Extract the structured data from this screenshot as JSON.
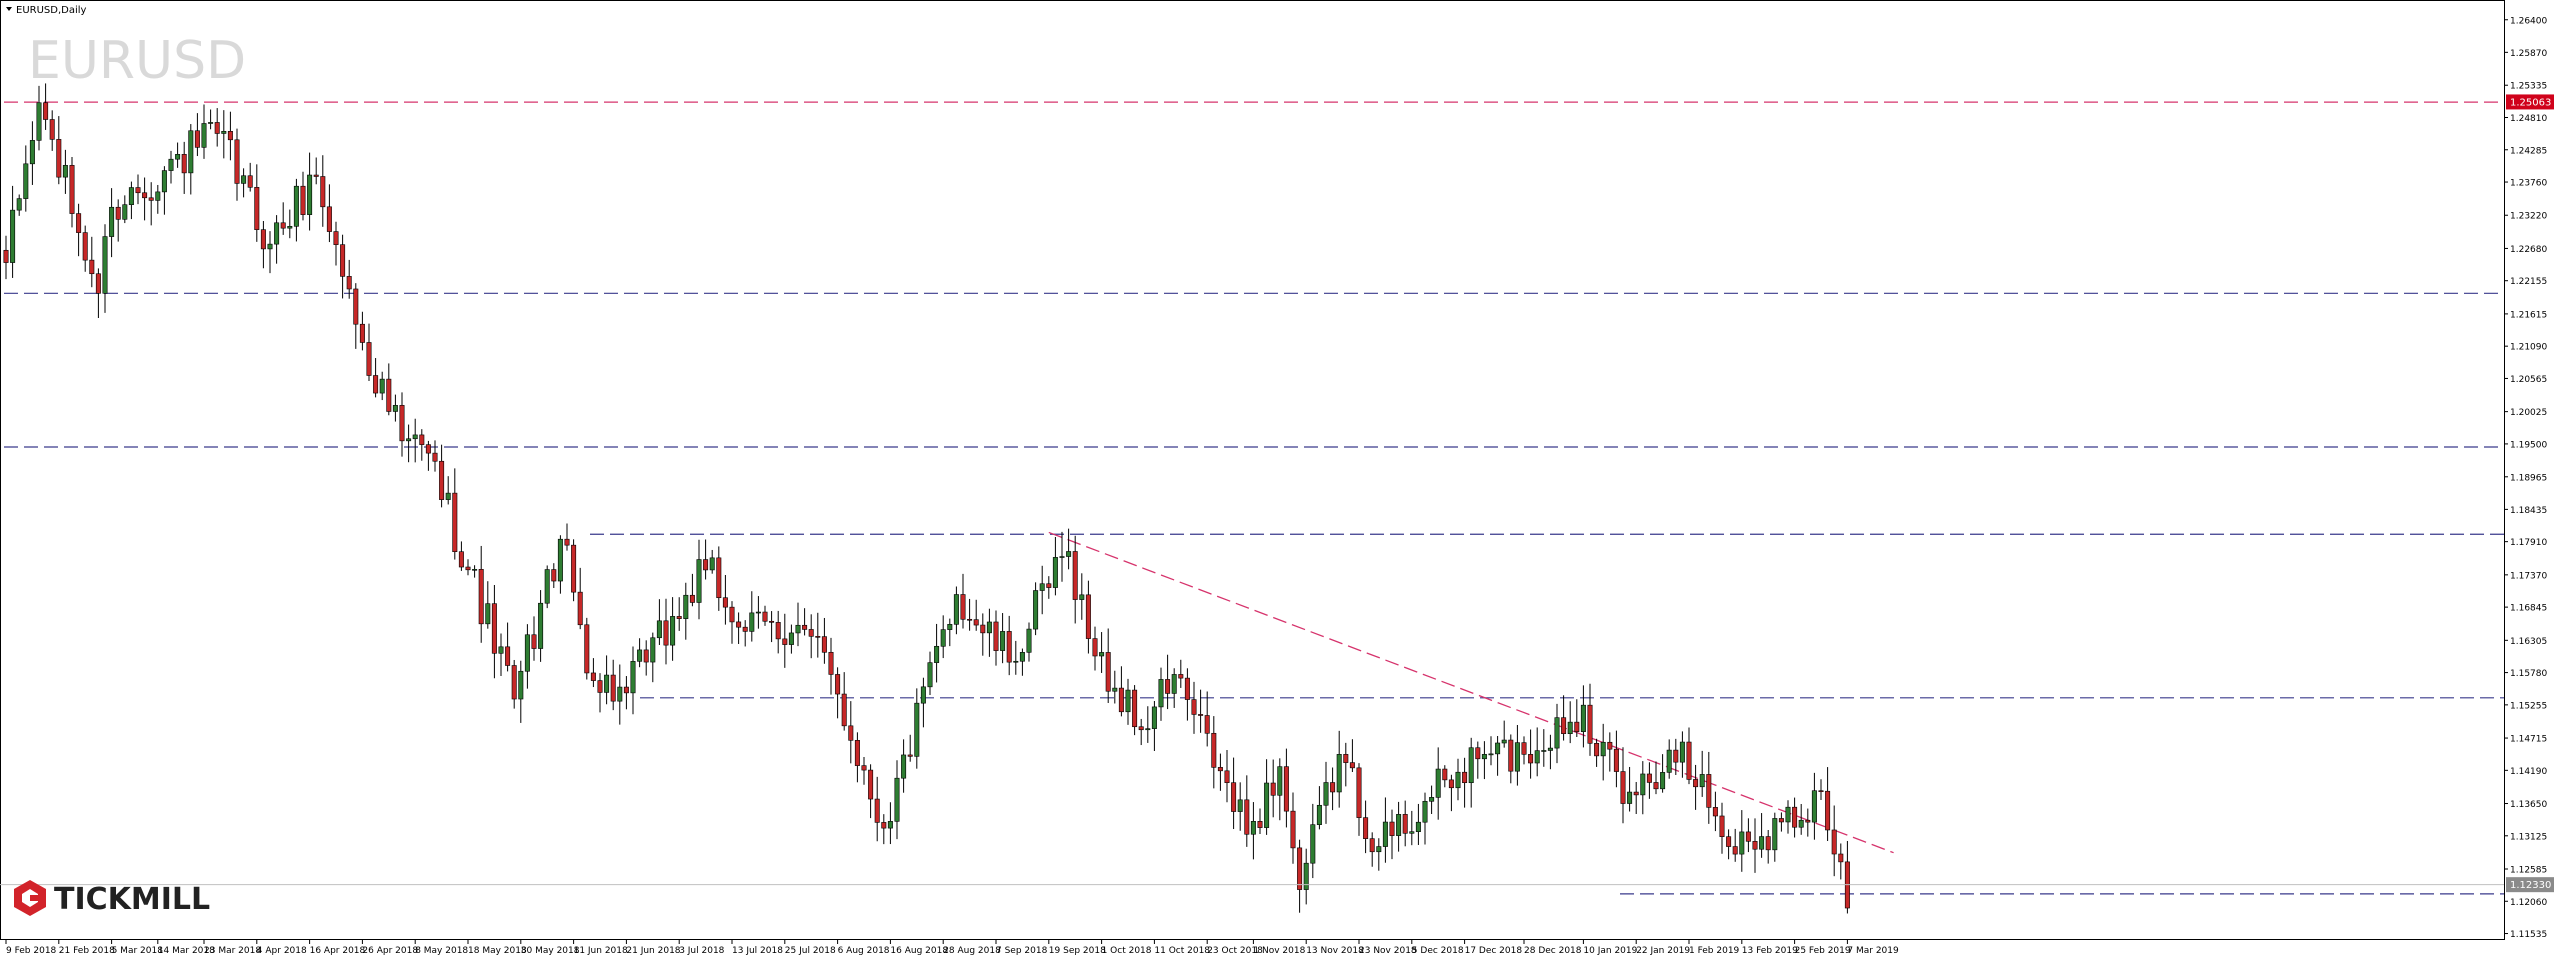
{
  "header": {
    "title": "EURUSD,Daily",
    "watermark": "EURUSD"
  },
  "logo": {
    "text": "TICKMILL"
  },
  "price_badges": {
    "red": "1.25063",
    "current": "1.12330"
  },
  "colors": {
    "up": "#2e7d32",
    "down": "#c62828",
    "support_line": "#3a3a8c",
    "resistance_line": "#d6336c",
    "badge_red": "#d0021b",
    "badge_current": "#8a8a8a",
    "logo_red": "#d2232a"
  },
  "chart_data": {
    "type": "candlestick",
    "symbol": "EURUSD",
    "timeframe": "Daily",
    "ylim": [
      1.1156,
      1.2664
    ],
    "y_ticks": [
      "1.26400",
      "1.25870",
      "1.25335",
      "1.24810",
      "1.24285",
      "1.23760",
      "1.23220",
      "1.22680",
      "1.22155",
      "1.21615",
      "1.21090",
      "1.20565",
      "1.20025",
      "1.19500",
      "1.18965",
      "1.18435",
      "1.17910",
      "1.17370",
      "1.16845",
      "1.16305",
      "1.15780",
      "1.15255",
      "1.14715",
      "1.14190",
      "1.13650",
      "1.13125",
      "1.12585",
      "1.12060",
      "1.11535"
    ],
    "x_ticks": [
      "9 Feb 2018",
      "21 Feb 2018",
      "5 Mar 2018",
      "14 Mar 2018",
      "23 Mar 2018",
      "4 Apr 2018",
      "16 Apr 2018",
      "26 Apr 2018",
      "8 May 2018",
      "18 May 2018",
      "30 May 2018",
      "11 Jun 2018",
      "21 Jun 2018",
      "3 Jul 2018",
      "13 Jul 2018",
      "25 Jul 2018",
      "6 Aug 2018",
      "16 Aug 2018",
      "28 Aug 2018",
      "7 Sep 2018",
      "19 Sep 2018",
      "1 Oct 2018",
      "11 Oct 2018",
      "23 Oct 2018",
      "1 Nov 2018",
      "13 Nov 2018",
      "23 Nov 2018",
      "5 Dec 2018",
      "17 Dec 2018",
      "28 Dec 2018",
      "10 Jan 2019",
      "22 Jan 2019",
      "1 Feb 2019",
      "13 Feb 2019",
      "25 Feb 2019",
      "7 Mar 2019"
    ],
    "horizontal_levels": [
      {
        "value": 1.2506,
        "style": "red-dash"
      },
      {
        "value": 1.2195,
        "style": "blue-dash"
      },
      {
        "value": 1.1945,
        "style": "blue-dash"
      },
      {
        "value": 1.1803,
        "style": "blue-dash"
      },
      {
        "value": 1.1537,
        "style": "blue-dash"
      },
      {
        "value": 1.1218,
        "style": "blue-dash"
      }
    ],
    "trendline": {
      "from": {
        "x": "19 Sep 2018",
        "y": 1.1806
      },
      "to": {
        "x": "18 Mar 2019",
        "y": 1.1285
      }
    },
    "anchors": [
      {
        "date": "9 Feb 2018",
        "close": 1.2245
      },
      {
        "date": "16 Feb 2018",
        "close": 1.2505
      },
      {
        "date": "1 Mar 2018",
        "close": 1.2195
      },
      {
        "date": "5 Mar 2018",
        "close": 1.2335
      },
      {
        "date": "27 Mar 2018",
        "close": 1.2455
      },
      {
        "date": "6 Apr 2018",
        "close": 1.2275
      },
      {
        "date": "17 Apr 2018",
        "close": 1.2385
      },
      {
        "date": "26 Apr 2018",
        "close": 1.2115
      },
      {
        "date": "4 May 2018",
        "close": 1.1955
      },
      {
        "date": "10 May 2018",
        "close": 1.1935
      },
      {
        "date": "29 May 2018",
        "close": 1.1535
      },
      {
        "date": "7 Jun 2018",
        "close": 1.1795
      },
      {
        "date": "14 Jun 2018",
        "close": 1.1565
      },
      {
        "date": "21 Jun 2018",
        "close": 1.1545
      },
      {
        "date": "9 Jul 2018",
        "close": 1.1745
      },
      {
        "date": "17 Jul 2018",
        "close": 1.1645
      },
      {
        "date": "27 Jul 2018",
        "close": 1.1655
      },
      {
        "date": "3 Aug 2018",
        "close": 1.1575
      },
      {
        "date": "15 Aug 2018",
        "close": 1.1325
      },
      {
        "date": "30 Aug 2018",
        "close": 1.1705
      },
      {
        "date": "11 Sep 2018",
        "close": 1.1595
      },
      {
        "date": "24 Sep 2018",
        "close": 1.1775
      },
      {
        "date": "28 Sep 2018",
        "close": 1.1605
      },
      {
        "date": "9 Oct 2018",
        "close": 1.1485
      },
      {
        "date": "16 Oct 2018",
        "close": 1.1575
      },
      {
        "date": "31 Oct 2018",
        "close": 1.1315
      },
      {
        "date": "7 Nov 2018",
        "close": 1.1425
      },
      {
        "date": "12 Nov 2018",
        "close": 1.1225
      },
      {
        "date": "20 Nov 2018",
        "close": 1.1445
      },
      {
        "date": "28 Nov 2018",
        "close": 1.1295
      },
      {
        "date": "10 Dec 2018",
        "close": 1.1375
      },
      {
        "date": "20 Dec 2018",
        "close": 1.1445
      },
      {
        "date": "28 Dec 2018",
        "close": 1.1445
      },
      {
        "date": "10 Jan 2019",
        "close": 1.1525
      },
      {
        "date": "18 Jan 2019",
        "close": 1.1365
      },
      {
        "date": "31 Jan 2019",
        "close": 1.1465
      },
      {
        "date": "11 Feb 2019",
        "close": 1.1295
      },
      {
        "date": "21 Feb 2019",
        "close": 1.1335
      },
      {
        "date": "1 Mar 2019",
        "close": 1.1385
      },
      {
        "date": "7 Mar 2019",
        "close": 1.1195
      }
    ]
  }
}
